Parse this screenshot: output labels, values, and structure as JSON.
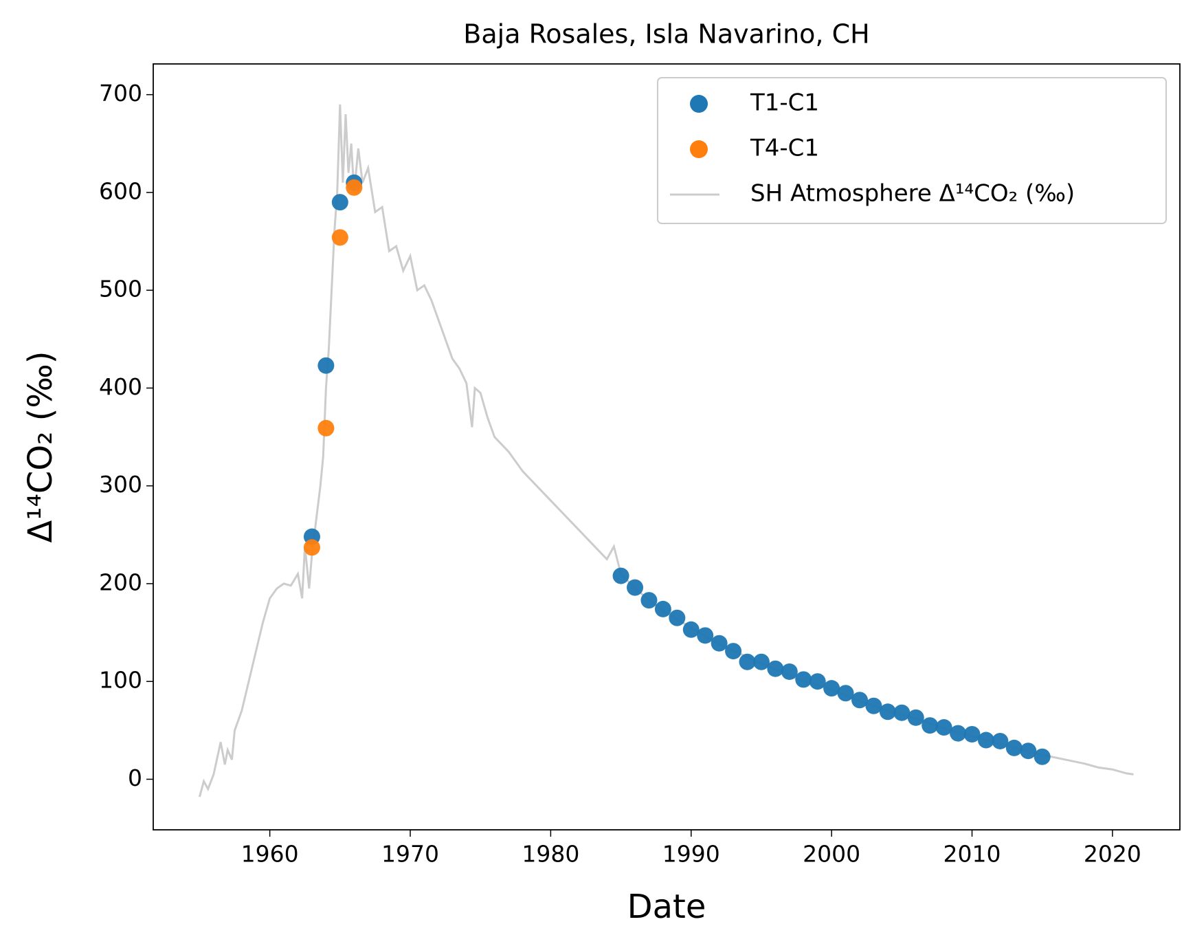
{
  "chart_data": {
    "type": "scatter",
    "title": "Baja Rosales, Isla Navarino, CH",
    "xlabel": "Date",
    "ylabel": "Δ¹⁴CO₂ (‰)",
    "xlim": [
      1951.7,
      2024.8
    ],
    "ylim": [
      -51.7,
      731.4
    ],
    "xticks": [
      1960,
      1970,
      1980,
      1990,
      2000,
      2010,
      2020
    ],
    "yticks": [
      0,
      100,
      200,
      300,
      400,
      500,
      600,
      700
    ],
    "legend": "upper right",
    "series": [
      {
        "name": "T1-C1",
        "color": "#1f77b4",
        "type": "scatter",
        "x": [
          1963,
          1964,
          1965,
          1966,
          1985,
          1986,
          1987,
          1988,
          1989,
          1990,
          1991,
          1992,
          1993,
          1994,
          1995,
          1996,
          1997,
          1998,
          1999,
          2000,
          2001,
          2002,
          2003,
          2004,
          2005,
          2006,
          2007,
          2008,
          2009,
          2010,
          2011,
          2012,
          2013,
          2014,
          2015
        ],
        "values": [
          248,
          423,
          590,
          610,
          208,
          196,
          183,
          174,
          165,
          153,
          147,
          139,
          131,
          120,
          120,
          113,
          110,
          102,
          100,
          93,
          88,
          81,
          75,
          69,
          68,
          63,
          55,
          53,
          47,
          46,
          40,
          39,
          32,
          29,
          23
        ]
      },
      {
        "name": "T4-C1",
        "color": "#ff7f0e",
        "type": "scatter",
        "x": [
          1963,
          1964,
          1965,
          1966
        ],
        "values": [
          237,
          359,
          554,
          605
        ]
      },
      {
        "name": "SH Atmosphere Δ¹⁴CO₂ (‰)",
        "color": "#cccccc",
        "type": "line",
        "x": [
          1955,
          1955.3,
          1955.6,
          1956,
          1956.5,
          1956.8,
          1957,
          1957.3,
          1957.5,
          1958,
          1958.5,
          1959,
          1959.5,
          1960,
          1960.5,
          1961,
          1961.5,
          1962,
          1962.3,
          1962.5,
          1962.8,
          1963,
          1963.3,
          1963.6,
          1963.8,
          1964,
          1964.2,
          1964.4,
          1964.6,
          1964.8,
          1965,
          1965.2,
          1965.4,
          1965.6,
          1965.8,
          1966,
          1966.3,
          1966.6,
          1967,
          1967.5,
          1968,
          1968.5,
          1969,
          1969.5,
          1970,
          1970.5,
          1971,
          1971.5,
          1972,
          1972.5,
          1973,
          1973.5,
          1974,
          1974.4,
          1974.6,
          1975,
          1975.5,
          1976,
          1977,
          1978,
          1979,
          1980,
          1981,
          1982,
          1983,
          1984,
          1984.5,
          1985,
          1986,
          1988,
          1990,
          1992,
          1994,
          1996,
          1998,
          2000,
          2002,
          2004,
          2006,
          2008,
          2010,
          2012,
          2014,
          2016,
          2018,
          2019,
          2020,
          2021,
          2021.5
        ],
        "values": [
          -18,
          -2,
          -10,
          5,
          38,
          15,
          30,
          20,
          50,
          70,
          100,
          130,
          160,
          185,
          195,
          200,
          198,
          210,
          185,
          238,
          195,
          230,
          265,
          300,
          330,
          400,
          440,
          500,
          560,
          600,
          690,
          610,
          680,
          620,
          650,
          600,
          645,
          610,
          625,
          580,
          585,
          540,
          545,
          520,
          535,
          500,
          505,
          490,
          470,
          450,
          430,
          420,
          405,
          360,
          400,
          395,
          370,
          350,
          335,
          315,
          300,
          285,
          270,
          255,
          240,
          225,
          238,
          210,
          195,
          172,
          155,
          138,
          125,
          112,
          100,
          92,
          80,
          70,
          62,
          52,
          44,
          36,
          28,
          22,
          16,
          12,
          10,
          6,
          5
        ]
      }
    ]
  }
}
